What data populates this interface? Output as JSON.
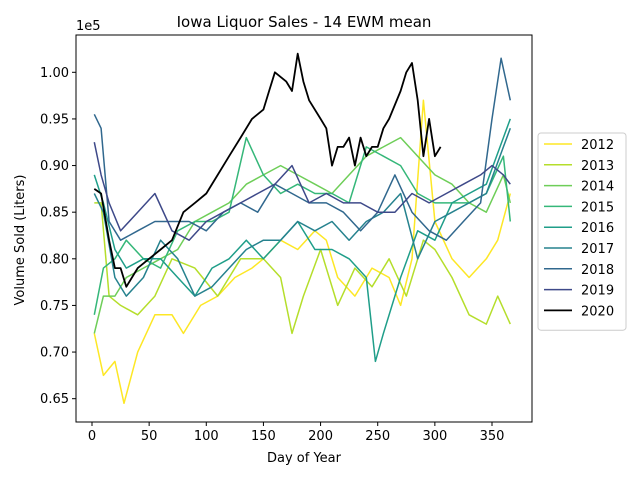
{
  "chart_data": {
    "type": "line",
    "title": "Iowa Liquor Sales - 14 EWM mean",
    "xlabel": "Day of Year",
    "ylabel": "Volume Sold (Liters)",
    "offset_text": "1e5",
    "xlim": [
      -14,
      385
    ],
    "ylim": [
      0.625,
      1.04
    ],
    "xticks": [
      0,
      50,
      100,
      150,
      200,
      250,
      300,
      350
    ],
    "xtick_labels": [
      "0",
      "50",
      "100",
      "150",
      "200",
      "250",
      "300",
      "350"
    ],
    "yticks": [
      0.65,
      0.7,
      0.75,
      0.8,
      0.85,
      0.9,
      0.95,
      1.0
    ],
    "ytick_labels": [
      "0.65",
      "0.70",
      "0.75",
      "0.80",
      "0.85",
      "0.90",
      "0.95",
      "1.00"
    ],
    "grid": false,
    "legend_placement": "outside-right",
    "series": [
      {
        "name": "2012",
        "color": "#fde725",
        "width": 1.5,
        "x": [
          2,
          10,
          20,
          28,
          40,
          55,
          70,
          80,
          95,
          110,
          125,
          140,
          150,
          165,
          180,
          195,
          205,
          215,
          230,
          245,
          260,
          270,
          280,
          290,
          300,
          315,
          330,
          345,
          355,
          366
        ],
        "y": [
          0.72,
          0.675,
          0.69,
          0.645,
          0.7,
          0.74,
          0.74,
          0.72,
          0.75,
          0.76,
          0.78,
          0.79,
          0.8,
          0.82,
          0.81,
          0.83,
          0.82,
          0.78,
          0.76,
          0.79,
          0.78,
          0.75,
          0.8,
          0.97,
          0.84,
          0.8,
          0.78,
          0.8,
          0.82,
          0.87
        ]
      },
      {
        "name": "2013",
        "color": "#b5de2b",
        "width": 1.5,
        "x": [
          2,
          8,
          15,
          25,
          40,
          55,
          70,
          90,
          110,
          130,
          150,
          165,
          175,
          185,
          200,
          215,
          230,
          245,
          260,
          275,
          290,
          300,
          315,
          330,
          345,
          355,
          366
        ],
        "y": [
          0.86,
          0.86,
          0.76,
          0.75,
          0.74,
          0.76,
          0.8,
          0.79,
          0.76,
          0.8,
          0.8,
          0.78,
          0.72,
          0.76,
          0.81,
          0.75,
          0.79,
          0.77,
          0.8,
          0.76,
          0.82,
          0.81,
          0.78,
          0.74,
          0.73,
          0.76,
          0.73
        ]
      },
      {
        "name": "2014",
        "color": "#6ece58",
        "width": 1.5,
        "x": [
          2,
          10,
          20,
          30,
          45,
          60,
          75,
          90,
          105,
          120,
          135,
          150,
          165,
          180,
          195,
          210,
          225,
          240,
          255,
          270,
          285,
          300,
          315,
          330,
          345,
          360,
          366
        ],
        "y": [
          0.72,
          0.76,
          0.76,
          0.78,
          0.79,
          0.8,
          0.81,
          0.84,
          0.85,
          0.86,
          0.88,
          0.89,
          0.9,
          0.89,
          0.88,
          0.87,
          0.89,
          0.91,
          0.92,
          0.93,
          0.91,
          0.89,
          0.88,
          0.86,
          0.85,
          0.89,
          0.86
        ]
      },
      {
        "name": "2015",
        "color": "#35b779",
        "width": 1.5,
        "x": [
          2,
          10,
          20,
          30,
          45,
          60,
          75,
          90,
          105,
          120,
          135,
          150,
          165,
          180,
          195,
          210,
          225,
          240,
          255,
          270,
          285,
          300,
          315,
          330,
          345,
          360,
          366
        ],
        "y": [
          0.74,
          0.79,
          0.8,
          0.82,
          0.8,
          0.79,
          0.83,
          0.84,
          0.84,
          0.85,
          0.93,
          0.89,
          0.87,
          0.88,
          0.87,
          0.87,
          0.86,
          0.92,
          0.91,
          0.9,
          0.87,
          0.86,
          0.86,
          0.86,
          0.87,
          0.91,
          0.84
        ]
      },
      {
        "name": "2016",
        "color": "#1f9e89",
        "width": 1.5,
        "x": [
          2,
          10,
          20,
          30,
          45,
          60,
          75,
          90,
          105,
          120,
          135,
          150,
          165,
          180,
          195,
          210,
          225,
          240,
          248,
          255,
          270,
          285,
          300,
          315,
          330,
          345,
          360,
          366
        ],
        "y": [
          0.89,
          0.86,
          0.81,
          0.79,
          0.8,
          0.8,
          0.78,
          0.76,
          0.79,
          0.8,
          0.82,
          0.8,
          0.82,
          0.84,
          0.81,
          0.81,
          0.8,
          0.78,
          0.69,
          0.72,
          0.78,
          0.83,
          0.82,
          0.86,
          0.87,
          0.88,
          0.93,
          0.95
        ]
      },
      {
        "name": "2017",
        "color": "#26828e",
        "width": 1.5,
        "x": [
          2,
          10,
          20,
          30,
          45,
          60,
          75,
          90,
          105,
          120,
          135,
          150,
          165,
          180,
          195,
          210,
          225,
          240,
          255,
          270,
          285,
          300,
          315,
          330,
          345,
          360,
          366
        ],
        "y": [
          0.87,
          0.85,
          0.78,
          0.76,
          0.78,
          0.82,
          0.8,
          0.76,
          0.77,
          0.79,
          0.81,
          0.82,
          0.82,
          0.84,
          0.83,
          0.84,
          0.82,
          0.84,
          0.85,
          0.87,
          0.8,
          0.84,
          0.85,
          0.86,
          0.87,
          0.92,
          0.94
        ]
      },
      {
        "name": "2018",
        "color": "#31688e",
        "width": 1.5,
        "x": [
          2,
          8,
          15,
          25,
          40,
          55,
          70,
          85,
          100,
          115,
          130,
          145,
          160,
          175,
          190,
          205,
          220,
          235,
          250,
          265,
          280,
          295,
          310,
          325,
          340,
          350,
          358,
          366
        ],
        "y": [
          0.955,
          0.94,
          0.84,
          0.82,
          0.83,
          0.84,
          0.84,
          0.84,
          0.83,
          0.85,
          0.86,
          0.85,
          0.88,
          0.87,
          0.86,
          0.86,
          0.85,
          0.83,
          0.85,
          0.89,
          0.85,
          0.83,
          0.82,
          0.84,
          0.86,
          0.95,
          1.015,
          0.97
        ]
      },
      {
        "name": "2019",
        "color": "#3e4989",
        "width": 1.5,
        "x": [
          2,
          8,
          15,
          25,
          40,
          55,
          70,
          85,
          100,
          115,
          130,
          145,
          160,
          175,
          190,
          205,
          220,
          235,
          250,
          265,
          280,
          295,
          310,
          325,
          340,
          350,
          360,
          366
        ],
        "y": [
          0.925,
          0.89,
          0.86,
          0.83,
          0.85,
          0.87,
          0.83,
          0.82,
          0.84,
          0.85,
          0.86,
          0.87,
          0.88,
          0.9,
          0.86,
          0.87,
          0.86,
          0.86,
          0.85,
          0.85,
          0.87,
          0.86,
          0.87,
          0.88,
          0.89,
          0.9,
          0.89,
          0.88
        ]
      },
      {
        "name": "2020",
        "color": "#000000",
        "width": 1.8,
        "x": [
          2,
          8,
          15,
          20,
          25,
          30,
          40,
          50,
          60,
          70,
          80,
          90,
          100,
          110,
          120,
          130,
          140,
          150,
          155,
          160,
          170,
          175,
          180,
          185,
          190,
          200,
          205,
          210,
          215,
          220,
          225,
          230,
          235,
          240,
          245,
          250,
          255,
          260,
          270,
          275,
          280,
          285,
          290,
          295,
          300,
          305
        ],
        "y": [
          0.875,
          0.87,
          0.82,
          0.79,
          0.79,
          0.77,
          0.79,
          0.8,
          0.81,
          0.82,
          0.85,
          0.86,
          0.87,
          0.89,
          0.91,
          0.93,
          0.95,
          0.96,
          0.98,
          1.0,
          0.99,
          0.98,
          1.02,
          0.99,
          0.97,
          0.95,
          0.94,
          0.9,
          0.92,
          0.92,
          0.93,
          0.9,
          0.93,
          0.91,
          0.92,
          0.92,
          0.94,
          0.95,
          0.98,
          1.0,
          1.01,
          0.97,
          0.91,
          0.95,
          0.91,
          0.92
        ]
      }
    ]
  }
}
